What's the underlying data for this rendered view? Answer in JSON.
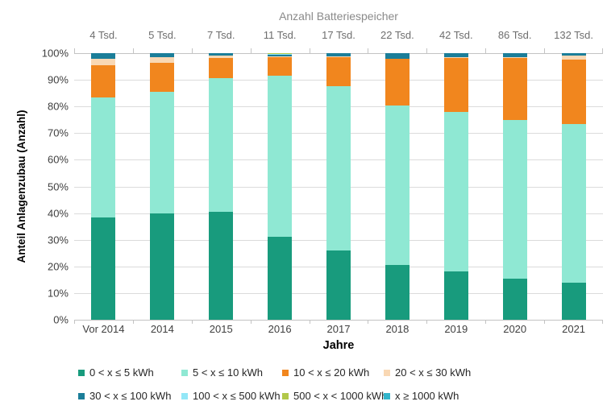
{
  "header": {
    "top_axis_title": "Anzahl Batteriespeicher"
  },
  "axes": {
    "y_title": "Anteil Anlagenzubau (Anzahl)",
    "x_title": "Jahre",
    "y_tick_labels": [
      "100%",
      "90%",
      "80%",
      "70%",
      "60%",
      "50%",
      "40%",
      "30%",
      "20%",
      "10%",
      "0%"
    ]
  },
  "chart_data": {
    "type": "bar",
    "stacked": true,
    "stack_mode": "percent",
    "title": "Anzahl Batteriespeicher",
    "xlabel": "Jahre",
    "ylabel": "Anteil Anlagenzubau (Anzahl)",
    "ylim": [
      0,
      100
    ],
    "y_tick_step": 10,
    "grid": true,
    "legend_position": "bottom",
    "categories": [
      "Vor 2014",
      "2014",
      "2015",
      "2016",
      "2017",
      "2018",
      "2019",
      "2020",
      "2021"
    ],
    "top_axis_labels": [
      "4 Tsd.",
      "5 Tsd.",
      "7 Tsd.",
      "11 Tsd.",
      "17 Tsd.",
      "22 Tsd.",
      "42 Tsd.",
      "86 Tsd.",
      "132 Tsd."
    ],
    "series": [
      {
        "name": "0 < x ≤ 5 kWh",
        "color": "#189b7d",
        "values": [
          38.5,
          40.0,
          40.5,
          31.0,
          26.0,
          20.5,
          18.0,
          15.5,
          14.0
        ]
      },
      {
        "name": "5 < x ≤ 10 kWh",
        "color": "#8fe8d3",
        "values": [
          45.0,
          45.5,
          50.0,
          60.5,
          61.5,
          60.0,
          60.0,
          59.5,
          59.5
        ]
      },
      {
        "name": "10 < x ≤ 20 kWh",
        "color": "#f1861e",
        "values": [
          12.0,
          11.0,
          7.8,
          7.0,
          11.0,
          17.3,
          20.3,
          23.2,
          24.0
        ]
      },
      {
        "name": "20 < x ≤ 30 kWh",
        "color": "#f9d8b4",
        "values": [
          2.5,
          2.0,
          0.7,
          0.4,
          0.3,
          0.2,
          0.3,
          0.4,
          1.7
        ]
      },
      {
        "name": "30 < x ≤ 100 kWh",
        "color": "#1b7e99",
        "values": [
          2.0,
          1.5,
          1.0,
          0.5,
          1.2,
          2.0,
          1.4,
          1.4,
          0.8
        ]
      },
      {
        "name": "100 < x ≤ 500 kWh",
        "color": "#93e7f7",
        "values": [
          0.0,
          0.0,
          0.0,
          0.2,
          0.0,
          0.0,
          0.0,
          0.0,
          0.0
        ]
      },
      {
        "name": "500 < x < 1000 kWh",
        "color": "#b2c84a",
        "values": [
          0.0,
          0.0,
          0.0,
          0.3,
          0.0,
          0.0,
          0.0,
          0.0,
          0.0
        ]
      },
      {
        "name": "x ≥ 1000 kWh",
        "color": "#32b5cb",
        "values": [
          0.0,
          0.0,
          0.0,
          0.1,
          0.0,
          0.0,
          0.0,
          0.0,
          0.0
        ]
      }
    ],
    "legend_rows": [
      [
        0,
        1,
        2,
        3
      ],
      [
        4,
        5,
        6,
        7
      ]
    ]
  }
}
